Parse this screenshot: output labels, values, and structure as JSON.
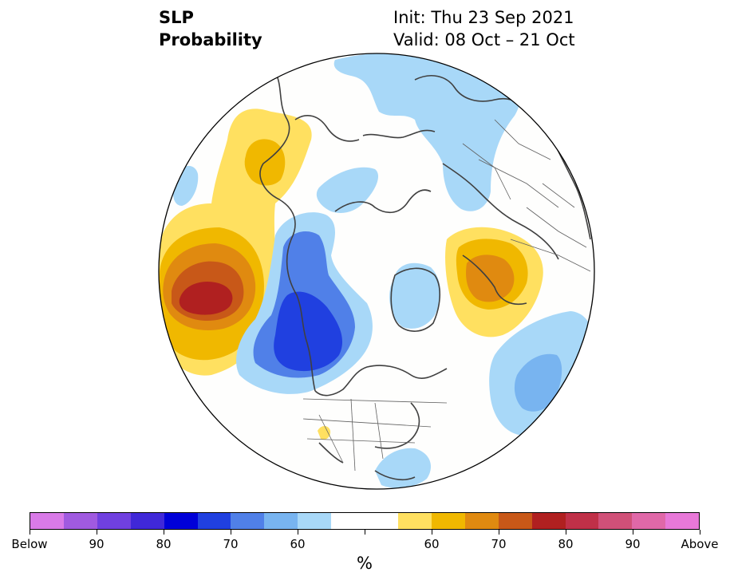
{
  "title": {
    "left_line1": "SLP",
    "left_line2": "Probability",
    "right_line1": "Init: Thu 23 Sep 2021",
    "right_line2": "Valid: 08 Oct – 21 Oct"
  },
  "colorbar": {
    "colors": [
      "#d97ae8",
      "#a05ae0",
      "#7040e0",
      "#4028d8",
      "#0000d8",
      "#2040e0",
      "#5080e8",
      "#78b4f0",
      "#a8d8f8",
      "#ffffff",
      "#ffffff",
      "#ffe060",
      "#f0b800",
      "#e08a10",
      "#c85818",
      "#b02020",
      "#c03048",
      "#d05078",
      "#e068a8",
      "#e878d8"
    ],
    "labels": [
      "Below",
      "90",
      "80",
      "70",
      "60",
      "60",
      "70",
      "80",
      "90",
      "Above"
    ],
    "unit": "%"
  },
  "legend": {
    "below_normal_colors": [
      "#a8d8f8",
      "#78b4f0",
      "#5080e8",
      "#2040e0"
    ],
    "above_normal_colors": [
      "#ffe060",
      "#f0b800",
      "#e08a10",
      "#c85818",
      "#b02020"
    ]
  }
}
